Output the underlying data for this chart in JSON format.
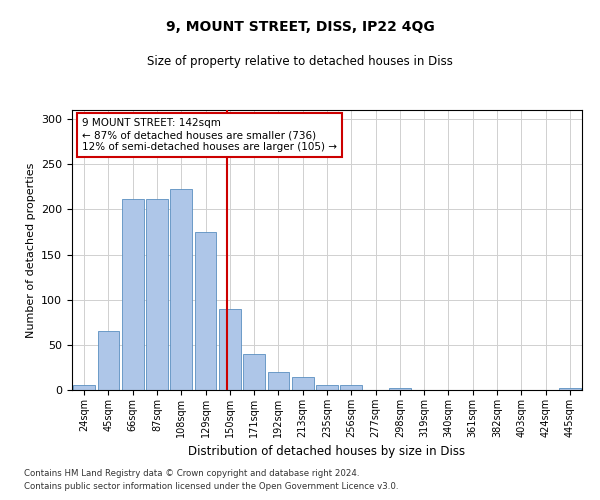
{
  "title1": "9, MOUNT STREET, DISS, IP22 4QG",
  "title2": "Size of property relative to detached houses in Diss",
  "xlabel": "Distribution of detached houses by size in Diss",
  "ylabel": "Number of detached properties",
  "categories": [
    "24sqm",
    "45sqm",
    "66sqm",
    "87sqm",
    "108sqm",
    "129sqm",
    "150sqm",
    "171sqm",
    "192sqm",
    "213sqm",
    "235sqm",
    "256sqm",
    "277sqm",
    "298sqm",
    "319sqm",
    "340sqm",
    "361sqm",
    "382sqm",
    "403sqm",
    "424sqm",
    "445sqm"
  ],
  "values": [
    5,
    65,
    212,
    212,
    223,
    175,
    90,
    40,
    20,
    14,
    6,
    5,
    0,
    2,
    0,
    0,
    0,
    0,
    0,
    0,
    2
  ],
  "bar_color": "#aec6e8",
  "bar_edge_color": "#5a8fc0",
  "vline_x": 5.88,
  "vline_color": "#cc0000",
  "annotation_text": "9 MOUNT STREET: 142sqm\n← 87% of detached houses are smaller (736)\n12% of semi-detached houses are larger (105) →",
  "annotation_box_color": "#ffffff",
  "annotation_box_edge": "#cc0000",
  "ylim": [
    0,
    310
  ],
  "yticks": [
    0,
    50,
    100,
    150,
    200,
    250,
    300
  ],
  "footer1": "Contains HM Land Registry data © Crown copyright and database right 2024.",
  "footer2": "Contains public sector information licensed under the Open Government Licence v3.0.",
  "bg_color": "#ffffff",
  "grid_color": "#d0d0d0"
}
